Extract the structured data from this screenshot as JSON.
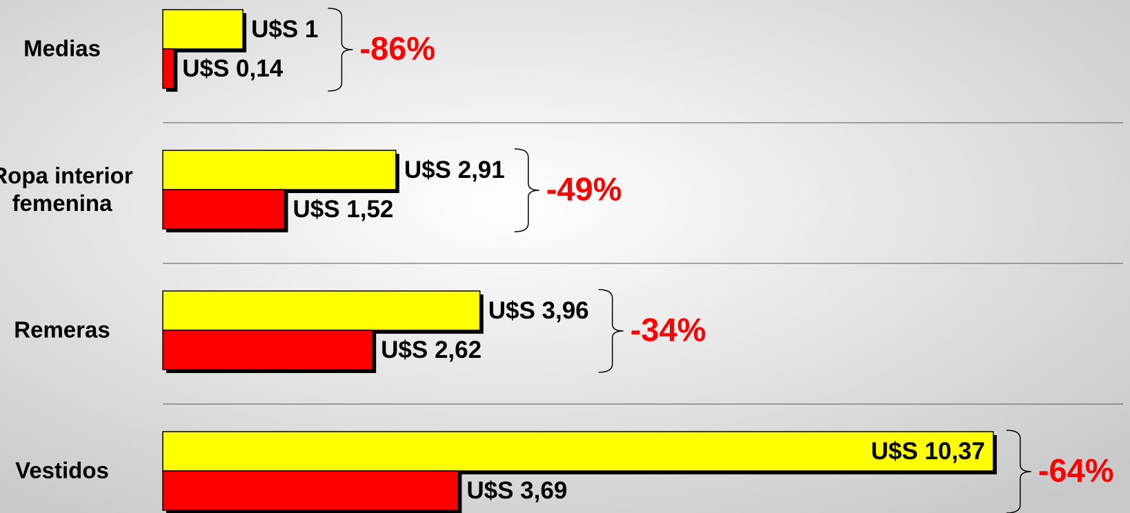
{
  "chart_data": {
    "type": "bar",
    "orientation": "horizontal",
    "categories": [
      "Medias",
      "Ropa interior femenina",
      "Remeras",
      "Vestidos"
    ],
    "series": [
      {
        "color": "#ffff00",
        "values": [
          1,
          2.91,
          3.96,
          10.37
        ],
        "value_labels": [
          "U$S 1",
          "U$S 2,91",
          "U$S 3,96",
          "U$S 10,37"
        ]
      },
      {
        "color": "#ff0000",
        "values": [
          0.14,
          1.52,
          2.62,
          3.69
        ],
        "value_labels": [
          "U$S 0,14",
          "U$S 1,52",
          "U$S 2,62",
          "U$S 3,69"
        ]
      }
    ],
    "annotations": [
      "-86%",
      "-49%",
      "-34%",
      "-64%"
    ],
    "xlim": [
      0,
      11
    ]
  }
}
